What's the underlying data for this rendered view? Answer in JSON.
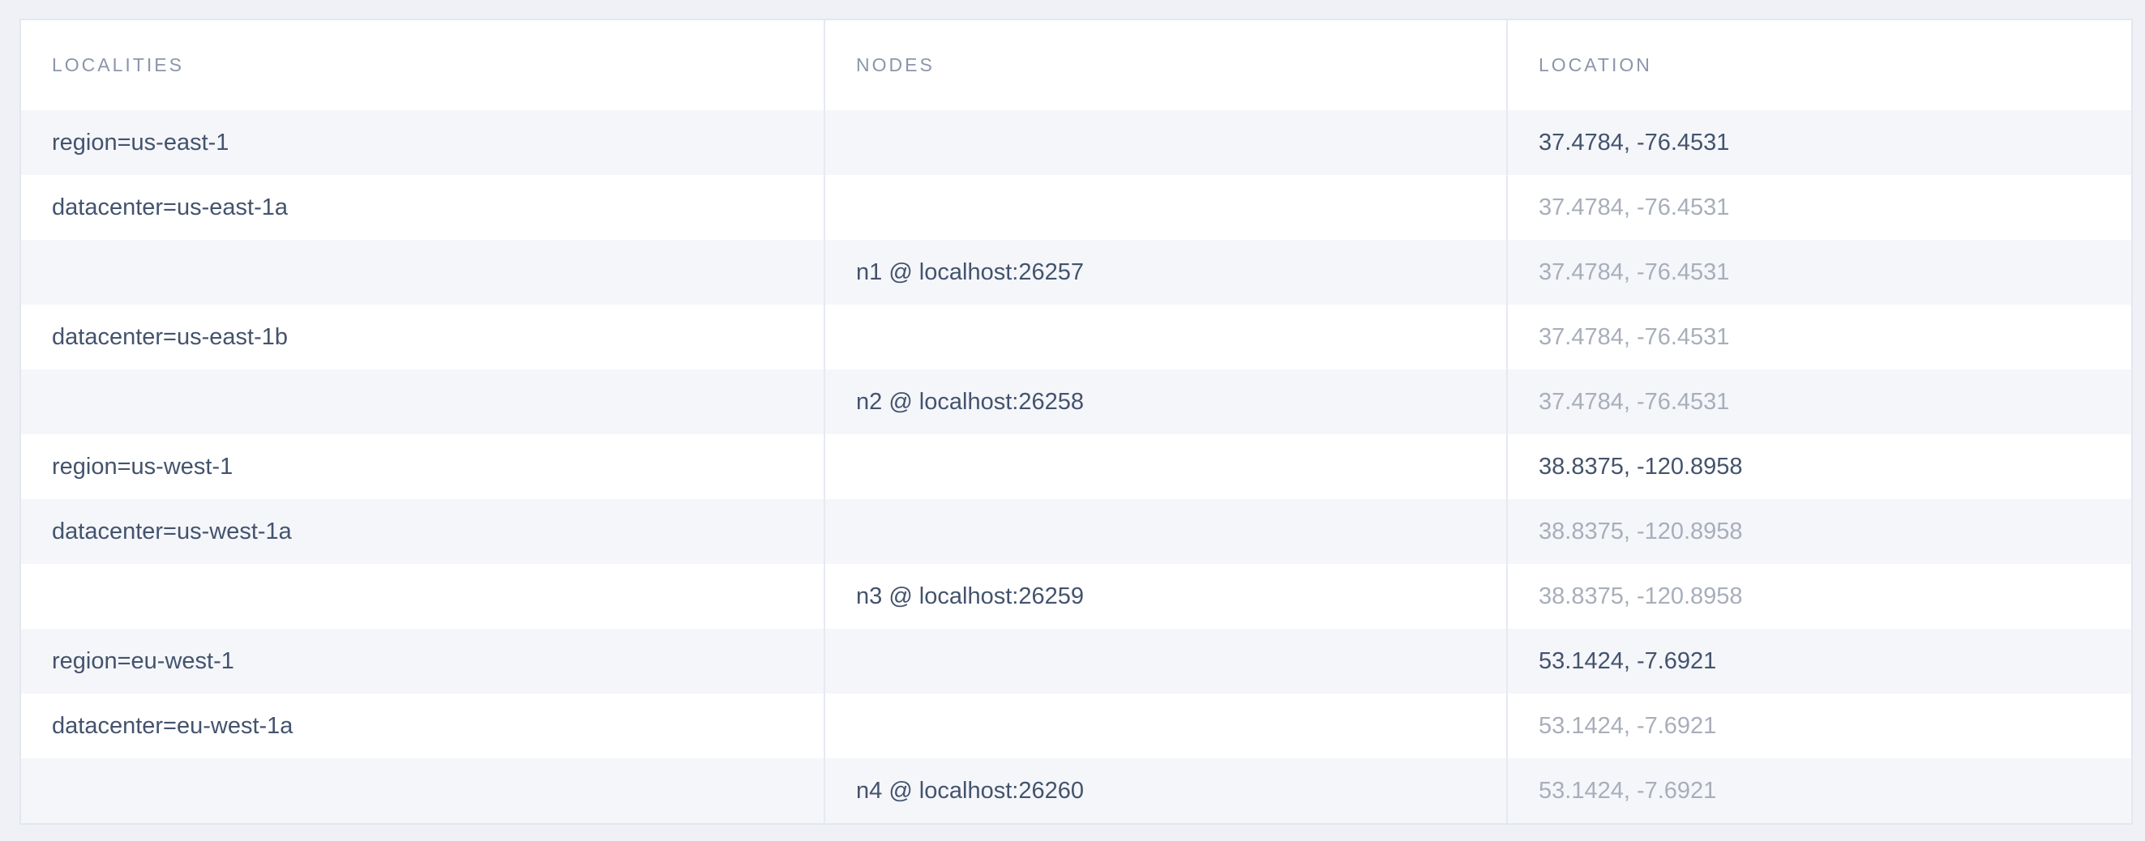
{
  "table": {
    "columns": [
      {
        "key": "localities",
        "label": "LOCALITIES"
      },
      {
        "key": "nodes",
        "label": "NODES"
      },
      {
        "key": "location",
        "label": "LOCATION"
      }
    ],
    "rows": [
      {
        "locality": "region=us-east-1",
        "indent": 0,
        "node": "",
        "location": "37.4784, -76.4531",
        "location_muted": false
      },
      {
        "locality": "datacenter=us-east-1a",
        "indent": 1,
        "node": "",
        "location": "37.4784, -76.4531",
        "location_muted": true
      },
      {
        "locality": "",
        "indent": 0,
        "node": "n1 @ localhost:26257",
        "location": "37.4784, -76.4531",
        "location_muted": true
      },
      {
        "locality": "datacenter=us-east-1b",
        "indent": 1,
        "node": "",
        "location": "37.4784, -76.4531",
        "location_muted": true
      },
      {
        "locality": "",
        "indent": 0,
        "node": "n2 @ localhost:26258",
        "location": "37.4784, -76.4531",
        "location_muted": true
      },
      {
        "locality": "region=us-west-1",
        "indent": 0,
        "node": "",
        "location": "38.8375, -120.8958",
        "location_muted": false
      },
      {
        "locality": "datacenter=us-west-1a",
        "indent": 1,
        "node": "",
        "location": "38.8375, -120.8958",
        "location_muted": true
      },
      {
        "locality": "",
        "indent": 0,
        "node": "n3 @ localhost:26259",
        "location": "38.8375, -120.8958",
        "location_muted": true
      },
      {
        "locality": "region=eu-west-1",
        "indent": 0,
        "node": "",
        "location": "53.1424, -7.6921",
        "location_muted": false
      },
      {
        "locality": "datacenter=eu-west-1a",
        "indent": 1,
        "node": "",
        "location": "53.1424, -7.6921",
        "location_muted": true
      },
      {
        "locality": "",
        "indent": 0,
        "node": "n4 @ localhost:26260",
        "location": "53.1424, -7.6921",
        "location_muted": true
      }
    ],
    "colors": {
      "page_background": "#eff1f6",
      "table_background": "#ffffff",
      "row_stripe": "#f4f6fa",
      "border": "#e3e7ef",
      "header_text": "#8c95ab",
      "body_text": "#44536d",
      "muted_text": "#a8aeba"
    }
  }
}
